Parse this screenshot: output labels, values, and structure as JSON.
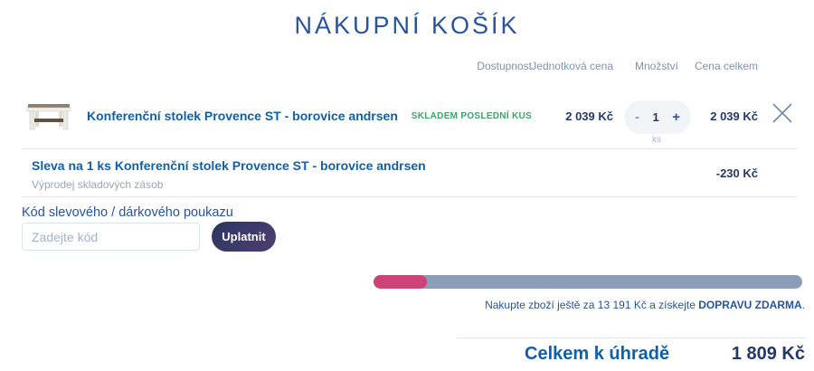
{
  "page": {
    "title": "NÁKUPNÍ KOŠÍK"
  },
  "table_headers": {
    "availability": "Dostupnost",
    "unit_price": "Jednotková cena",
    "quantity": "Množství",
    "total": "Cena celkem"
  },
  "product": {
    "name": "Konferenční stolek Provence ST - borovice andrsen",
    "availability": "SKLADEM POSLEDNÍ KUS",
    "unit_price": "2 039 Kč",
    "quantity": "1",
    "quantity_unit": "ks",
    "minus_label": "-",
    "plus_label": "+",
    "total": "2 039 Kč"
  },
  "discount": {
    "name": "Sleva na 1 ks Konferenční stolek Provence ST - borovice andrsen",
    "note": "Výprodej skladových zásob",
    "amount": "-230 Kč"
  },
  "coupon": {
    "label": "Kód slevového / dárkového poukazu",
    "placeholder": "Zadejte kód",
    "value": "",
    "submit_label": "Uplatnit"
  },
  "shipping": {
    "progress_percent": 12.5,
    "note_prefix": "Nakupte zboží ještě za 13 191 Kč a získejte ",
    "note_bold": "DOPRAVU ZDARMA",
    "note_suffix": "."
  },
  "summary": {
    "label": "Celkem k úhradě",
    "total": "1 809 Kč"
  },
  "colors": {
    "title_blue": "#27549b",
    "link_blue": "#1060a8",
    "price_navy": "#233a66",
    "muted_header": "#7d93b2",
    "availability_green": "#3da366",
    "progress_pink": "#ce4377",
    "progress_track": "#8c9db7",
    "button_gradient_start": "#2c3660",
    "button_gradient_end": "#4d3e72"
  },
  "icons": {
    "remove": "close-x",
    "product_thumbnail": "coffee-table"
  }
}
